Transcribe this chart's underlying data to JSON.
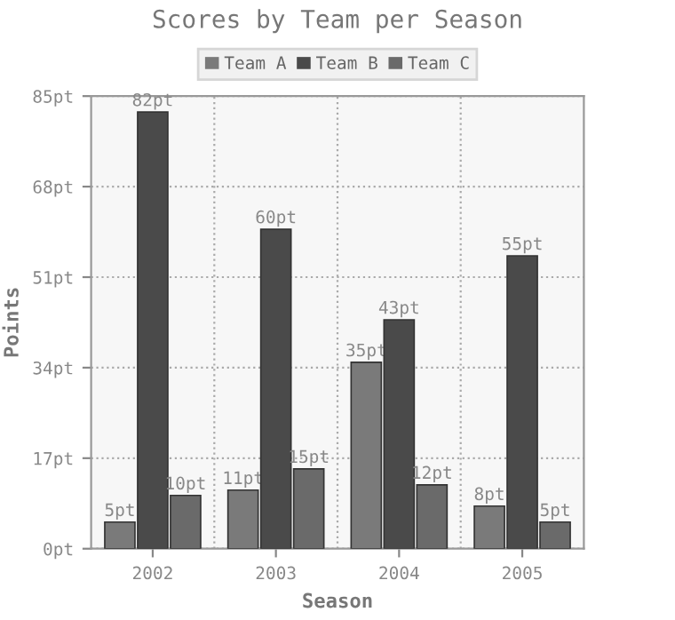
{
  "chart_data": {
    "type": "bar",
    "title": "Scores by Team per Season",
    "xlabel": "Season",
    "ylabel": "Points",
    "categories": [
      "2002",
      "2003",
      "2004",
      "2005"
    ],
    "series": [
      {
        "name": "Team A",
        "color": "#7a7a7a",
        "values": [
          5,
          11,
          35,
          8
        ],
        "value_labels": [
          "5pt",
          "11pt",
          "35pt",
          "8pt"
        ]
      },
      {
        "name": "Team B",
        "color": "#4a4a4a",
        "values": [
          82,
          60,
          43,
          55
        ],
        "value_labels": [
          "82pt",
          "60pt",
          "43pt",
          "55pt"
        ]
      },
      {
        "name": "Team C",
        "color": "#6a6a6a",
        "values": [
          10,
          15,
          12,
          5
        ],
        "value_labels": [
          "10pt",
          "15pt",
          "12pt",
          "5pt"
        ]
      }
    ],
    "ylim": [
      0,
      85
    ],
    "yticks": [
      {
        "value": 0,
        "label": "0pt"
      },
      {
        "value": 17,
        "label": "17pt"
      },
      {
        "value": 34,
        "label": "34pt"
      },
      {
        "value": 51,
        "label": "51pt"
      },
      {
        "value": 68,
        "label": "68pt"
      },
      {
        "value": 85,
        "label": "85pt"
      }
    ],
    "grid": true,
    "legend": "top"
  }
}
